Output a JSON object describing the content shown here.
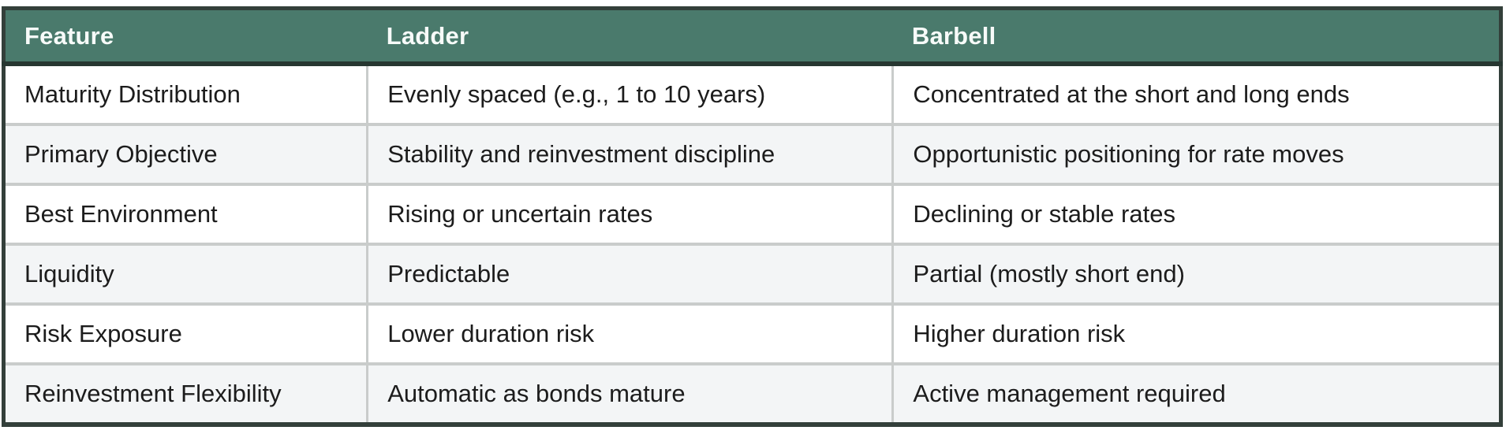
{
  "chart_data": {
    "type": "table",
    "columns": [
      "Feature",
      "Ladder",
      "Barbell"
    ],
    "rows": [
      [
        "Maturity Distribution",
        "Evenly spaced (e.g., 1 to 10 years)",
        "Concentrated at the short and long ends"
      ],
      [
        "Primary Objective",
        "Stability and reinvestment discipline",
        "Opportunistic positioning for rate moves"
      ],
      [
        "Best Environment",
        "Rising or uncertain rates",
        "Declining or stable rates"
      ],
      [
        "Liquidity",
        "Predictable",
        "Partial (mostly short end)"
      ],
      [
        "Risk Exposure",
        "Lower duration risk",
        "Higher duration risk"
      ],
      [
        "Reinvestment Flexibility",
        "Automatic as bonds mature",
        "Active management required"
      ]
    ],
    "layout": {
      "header_position": "top",
      "zebra_striping": true,
      "column_alignment": "left"
    }
  },
  "colors": {
    "header_background": "#4a7a6c",
    "header_text": "#f7fbf9",
    "header_underline": "#273731",
    "outer_border": "#333f3a",
    "row_divider": "#c9cccb",
    "alt_row_background": "#f3f5f6",
    "body_text": "#1c1c1c"
  }
}
